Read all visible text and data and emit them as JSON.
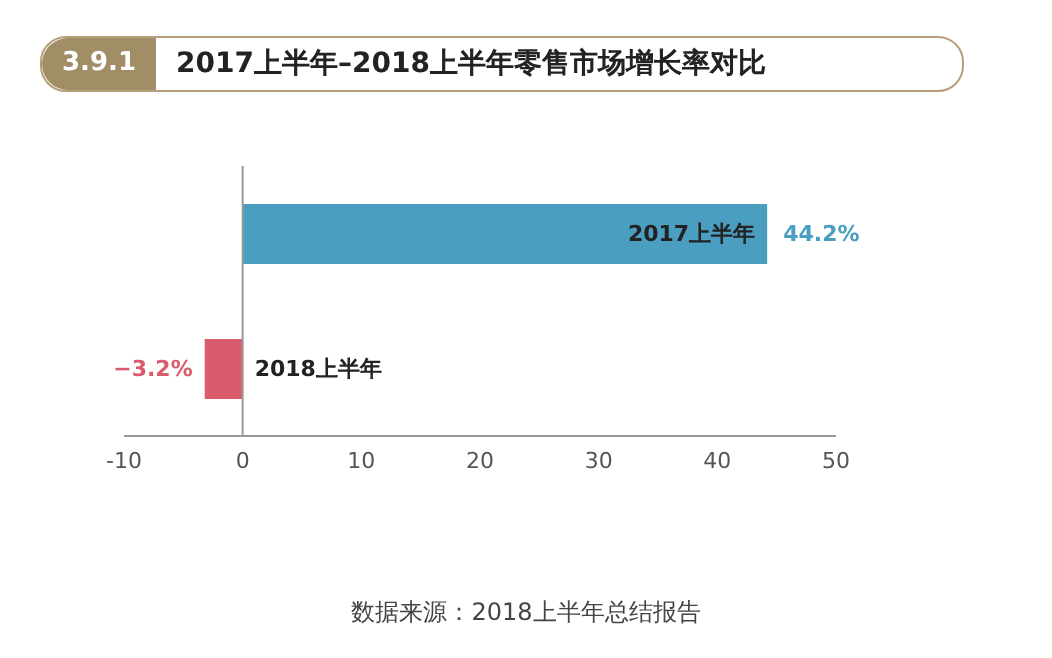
{
  "chart_data": {
    "type": "bar",
    "orientation": "horizontal",
    "title": "2017上半年–2018上半年零售市场增长率对比",
    "subtitle": "3.9.1",
    "categories": [
      "2017上半年",
      "2018上半年"
    ],
    "values": [
      44.2,
      -3.2
    ],
    "colors": [
      "#4a9ec0",
      "#d95b6c"
    ],
    "value_labels": [
      "44.2%",
      "−3.2%"
    ],
    "xlim": [
      -10,
      50
    ],
    "xticks": [
      -10,
      0,
      10,
      20,
      30,
      40,
      50
    ],
    "ref_lines": [
      {
        "axis": "x",
        "value": 0,
        "color": "#999999"
      }
    ],
    "annotations": [
      "数据来源：2018上半年总结报告"
    ]
  }
}
